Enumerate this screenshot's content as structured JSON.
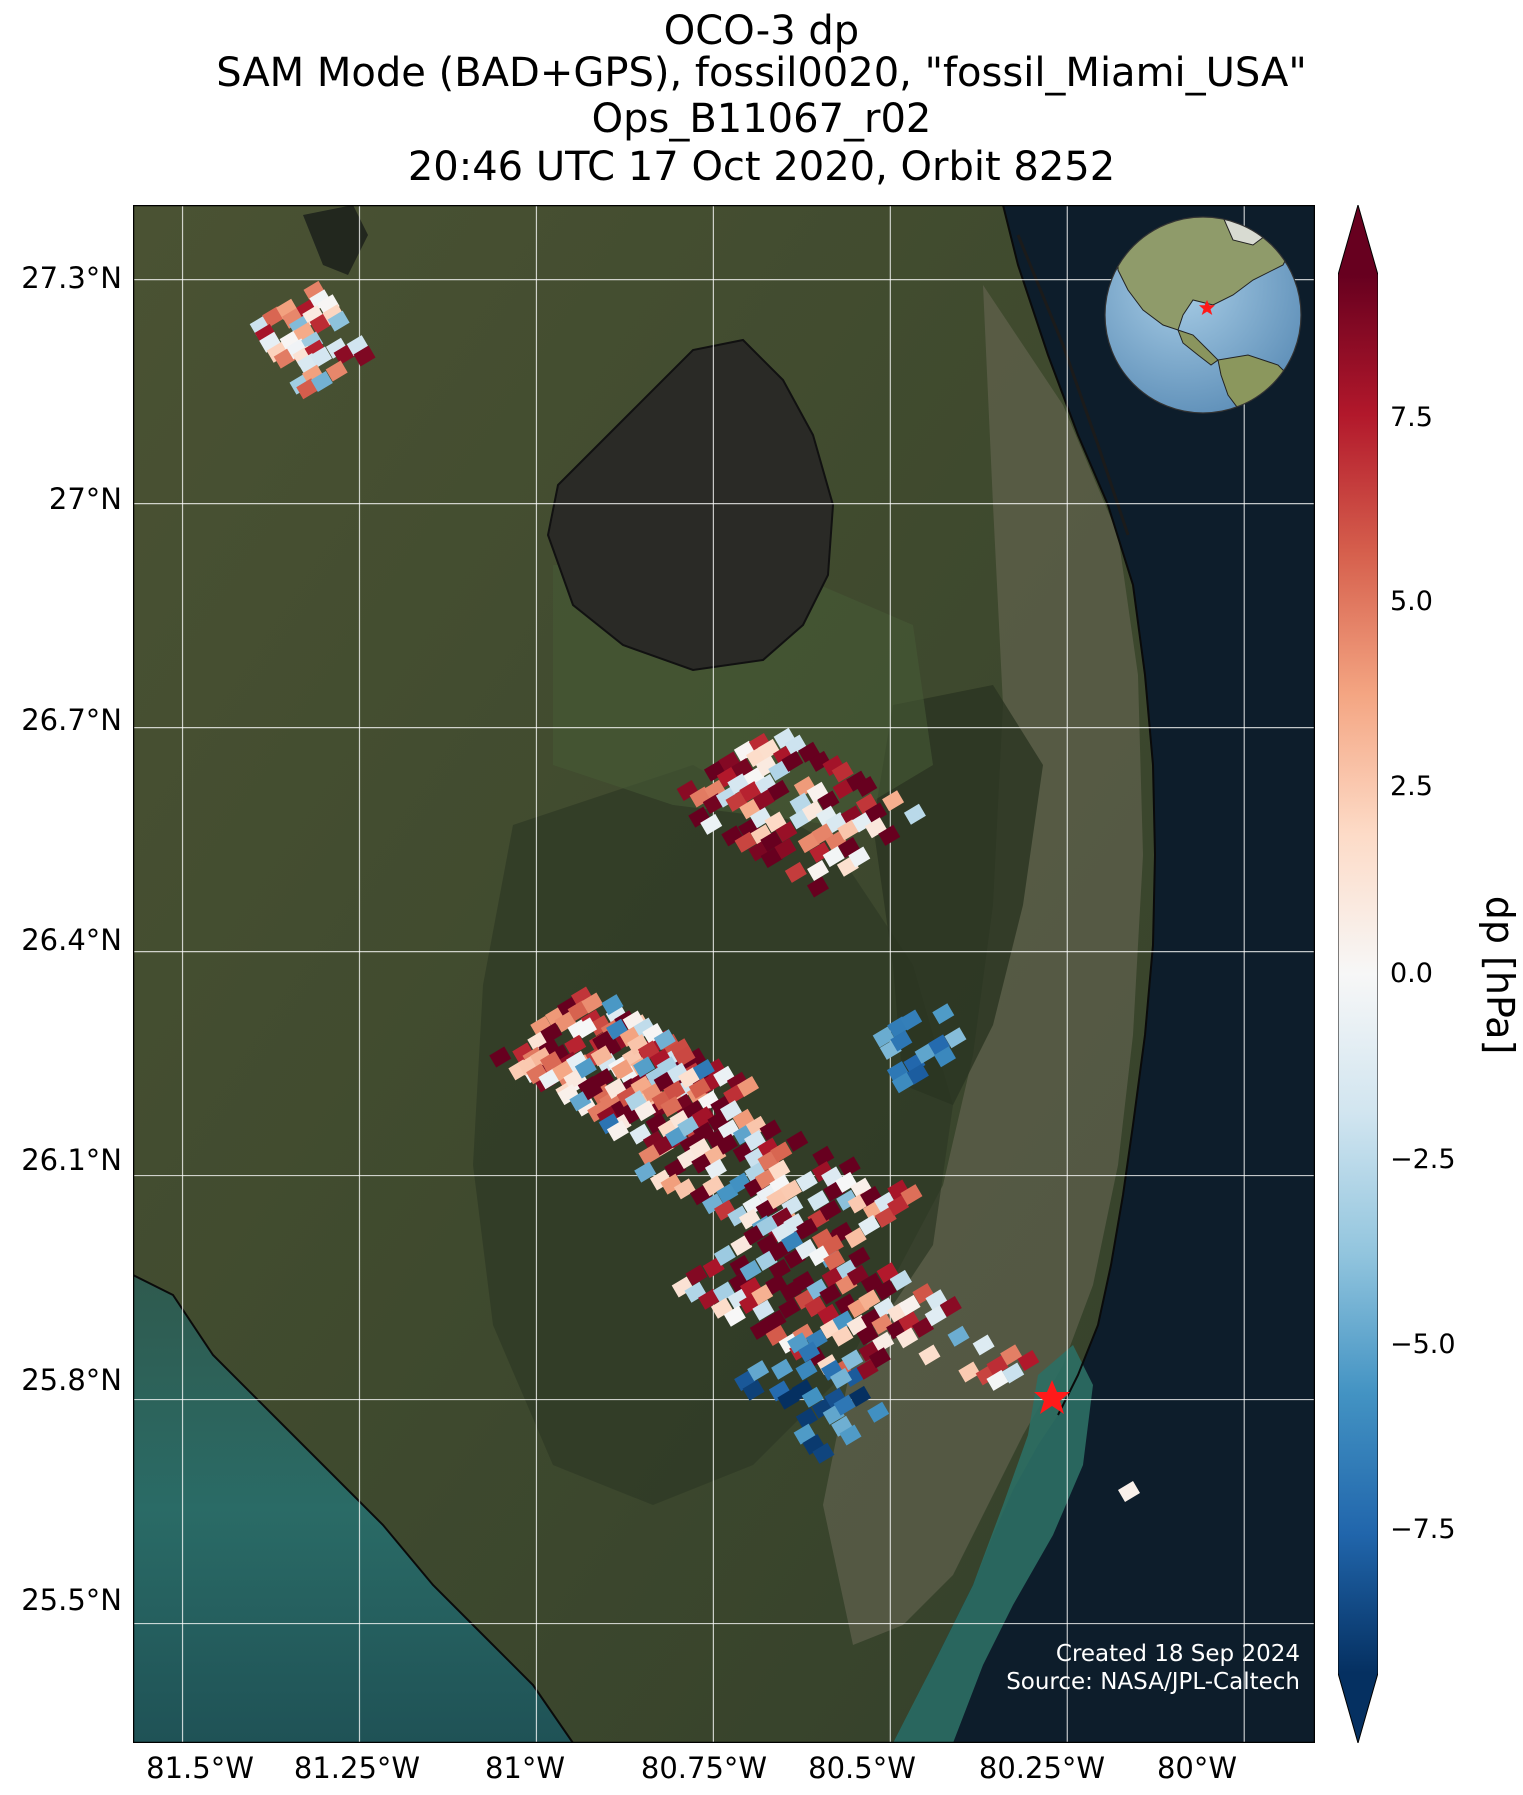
{
  "title": {
    "line1": "OCO-3 dp",
    "line2": "SAM Mode (BAD+GPS), fossil0020, \"fossil_Miami_USA\"",
    "line3": "Ops_B11067_r02",
    "line4": "20:46 UTC 17 Oct 2020, Orbit 8252"
  },
  "map": {
    "lon_range": [
      -81.57,
      -79.9
    ],
    "lat_range": [
      25.34,
      27.4
    ],
    "lat_ticks": [
      "27.3°N",
      "27°N",
      "26.7°N",
      "26.4°N",
      "26.1°N",
      "25.8°N",
      "25.5°N"
    ],
    "lon_ticks": [
      "81.5°W",
      "81.25°W",
      "81°W",
      "80.75°W",
      "80.5°W",
      "80.25°W",
      "80°W"
    ],
    "target_marker": "red-star",
    "target_lon": -80.19,
    "target_lat": 25.78
  },
  "inset_globe": {
    "marker": "red-star"
  },
  "colorbar": {
    "label": "dp [hPa]",
    "tick_labels": [
      "7.5",
      "5.0",
      "2.5",
      "0.0",
      "−2.5",
      "−5.0",
      "−7.5"
    ],
    "range": [
      -9.5,
      9.5
    ],
    "colormap": "RdBu_r",
    "extend": "both"
  },
  "credits": {
    "created": "Created 18 Sep 2024",
    "source": "Source: NASA/JPL-Caltech"
  },
  "colors": {
    "ocean": "#0d1d2b",
    "land": "#3b432c",
    "grid": "#ffffff",
    "marker": "#ff1a1a"
  }
}
